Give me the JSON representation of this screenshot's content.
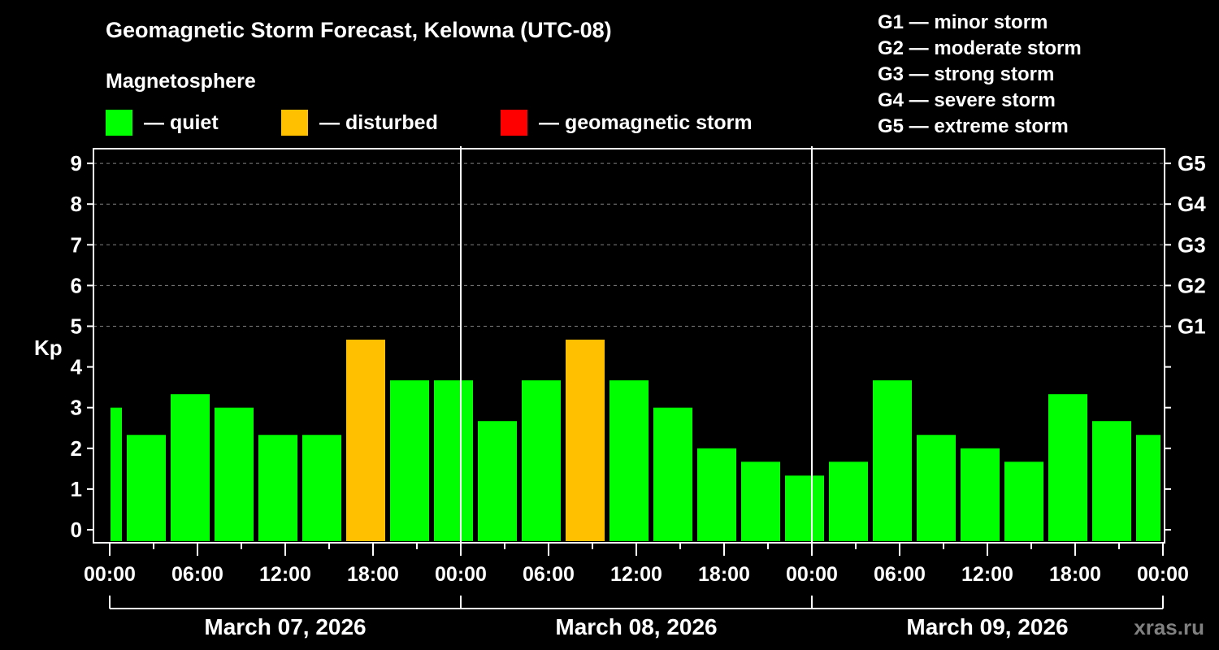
{
  "header": {
    "title": "Geomagnetic Storm Forecast, Kelowna (UTC-08)",
    "subtitle": "Magnetosphere"
  },
  "legend": [
    {
      "label": "— quiet",
      "color": "#00ff00"
    },
    {
      "label": "— disturbed",
      "color": "#ffc000"
    },
    {
      "label": "— geomagnetic storm",
      "color": "#ff0000"
    }
  ],
  "g_scale_legend": [
    "G1 — minor storm",
    "G2 — moderate storm",
    "G3 — strong storm",
    "G4 — severe storm",
    "G5 — extreme storm"
  ],
  "watermark": "xras.ru",
  "chart_data": {
    "type": "bar",
    "title": "Geomagnetic Storm Forecast, Kelowna (UTC-08)",
    "ylabel": "Kp",
    "xlabel": "",
    "ylim": [
      0,
      9
    ],
    "y_ticks": [
      0,
      1,
      2,
      3,
      4,
      5,
      6,
      7,
      8,
      9
    ],
    "right_axis_labels": [
      {
        "kp": 5,
        "label": "G1"
      },
      {
        "kp": 6,
        "label": "G2"
      },
      {
        "kp": 7,
        "label": "G3"
      },
      {
        "kp": 8,
        "label": "G4"
      },
      {
        "kp": 9,
        "label": "G5"
      }
    ],
    "x_tick_labels": [
      "00:00",
      "06:00",
      "12:00",
      "18:00",
      "00:00",
      "06:00",
      "12:00",
      "18:00",
      "00:00",
      "06:00",
      "12:00",
      "18:00",
      "00:00"
    ],
    "dates": [
      "March 07, 2026",
      "March 08, 2026",
      "March 09, 2026"
    ],
    "grid": "dashed horizontal at Kp 5-9",
    "bin_hours": 3,
    "first_bin_start_hour": -2,
    "series": [
      {
        "name": "Kp",
        "values": [
          3.0,
          2.33,
          3.33,
          3.0,
          2.33,
          2.33,
          4.67,
          3.67,
          3.67,
          2.67,
          3.67,
          4.67,
          3.67,
          3.0,
          2.0,
          1.67,
          1.33,
          1.67,
          3.67,
          2.33,
          2.0,
          1.67,
          3.33,
          2.67,
          2.33
        ],
        "status": [
          "quiet",
          "quiet",
          "quiet",
          "quiet",
          "quiet",
          "quiet",
          "disturbed",
          "quiet",
          "quiet",
          "quiet",
          "quiet",
          "disturbed",
          "quiet",
          "quiet",
          "quiet",
          "quiet",
          "quiet",
          "quiet",
          "quiet",
          "quiet",
          "quiet",
          "quiet",
          "quiet",
          "quiet",
          "quiet"
        ]
      }
    ],
    "colors": {
      "quiet": "#00ff00",
      "disturbed": "#ffc000",
      "storm": "#ff0000"
    }
  }
}
